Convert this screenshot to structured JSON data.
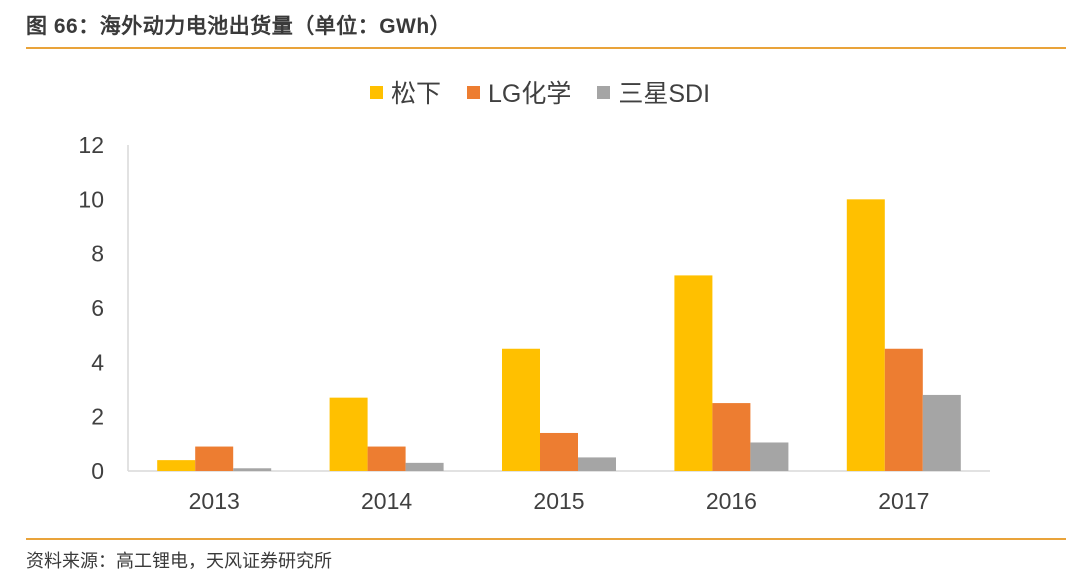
{
  "figure": {
    "title": "图 66：海外动力电池出货量（单位：GWh）",
    "source": "资料来源：高工锂电，天风证券研究所",
    "accent_color": "#e9a33a"
  },
  "chart_data": {
    "type": "bar",
    "categories": [
      "2013",
      "2014",
      "2015",
      "2016",
      "2017"
    ],
    "series": [
      {
        "name": "松下",
        "color": "#ffc000",
        "values": [
          0.4,
          2.7,
          4.5,
          7.2,
          10.0
        ]
      },
      {
        "name": "LG化学",
        "color": "#ed7d31",
        "values": [
          0.9,
          0.9,
          1.4,
          2.5,
          4.5
        ]
      },
      {
        "name": "三星SDI",
        "color": "#a5a5a5",
        "values": [
          0.1,
          0.3,
          0.5,
          1.05,
          2.8
        ]
      }
    ],
    "ylim": [
      0,
      12
    ],
    "yticks": [
      "0",
      "2",
      "4",
      "6",
      "8",
      "10",
      "12"
    ],
    "grid": false,
    "legend_position": "top-center"
  }
}
